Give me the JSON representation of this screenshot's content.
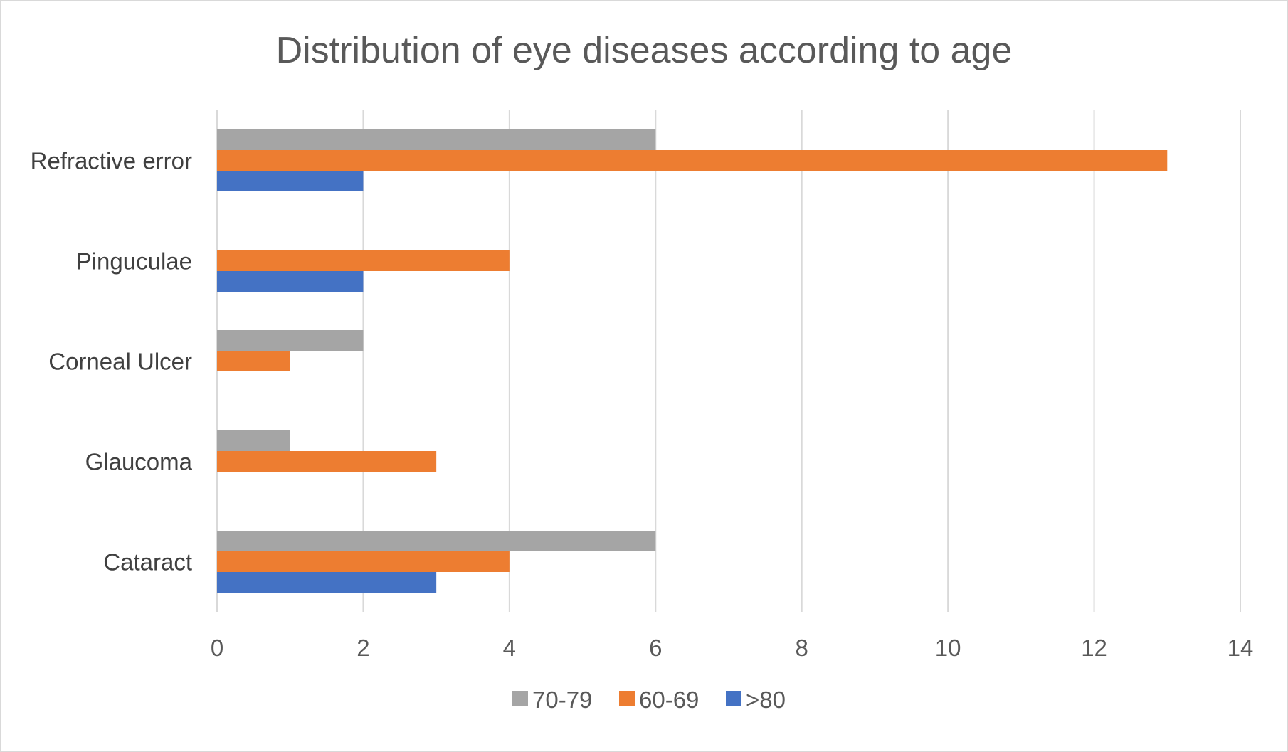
{
  "chart_data": {
    "type": "bar",
    "orientation": "horizontal",
    "title": "Distribution of eye diseases according to age",
    "xlabel": "",
    "ylabel": "",
    "categories": [
      "Refractive error",
      "Pinguculae",
      "Corneal Ulcer",
      "Glaucoma",
      "Cataract"
    ],
    "series": [
      {
        "name": "70-79",
        "color": "#a5a5a5",
        "values": [
          6,
          0,
          2,
          1,
          6
        ]
      },
      {
        "name": "60-69",
        "color": "#ed7d31",
        "values": [
          13,
          4,
          1,
          3,
          4
        ]
      },
      {
        "name": ">80",
        "color": "#4472c4",
        "values": [
          2,
          2,
          0,
          0,
          3
        ]
      }
    ],
    "xlim": [
      0,
      14
    ],
    "xticks": [
      "0",
      "2",
      "4",
      "6",
      "8",
      "10",
      "12",
      "14"
    ],
    "grid": "vertical",
    "legend": "bottom"
  }
}
